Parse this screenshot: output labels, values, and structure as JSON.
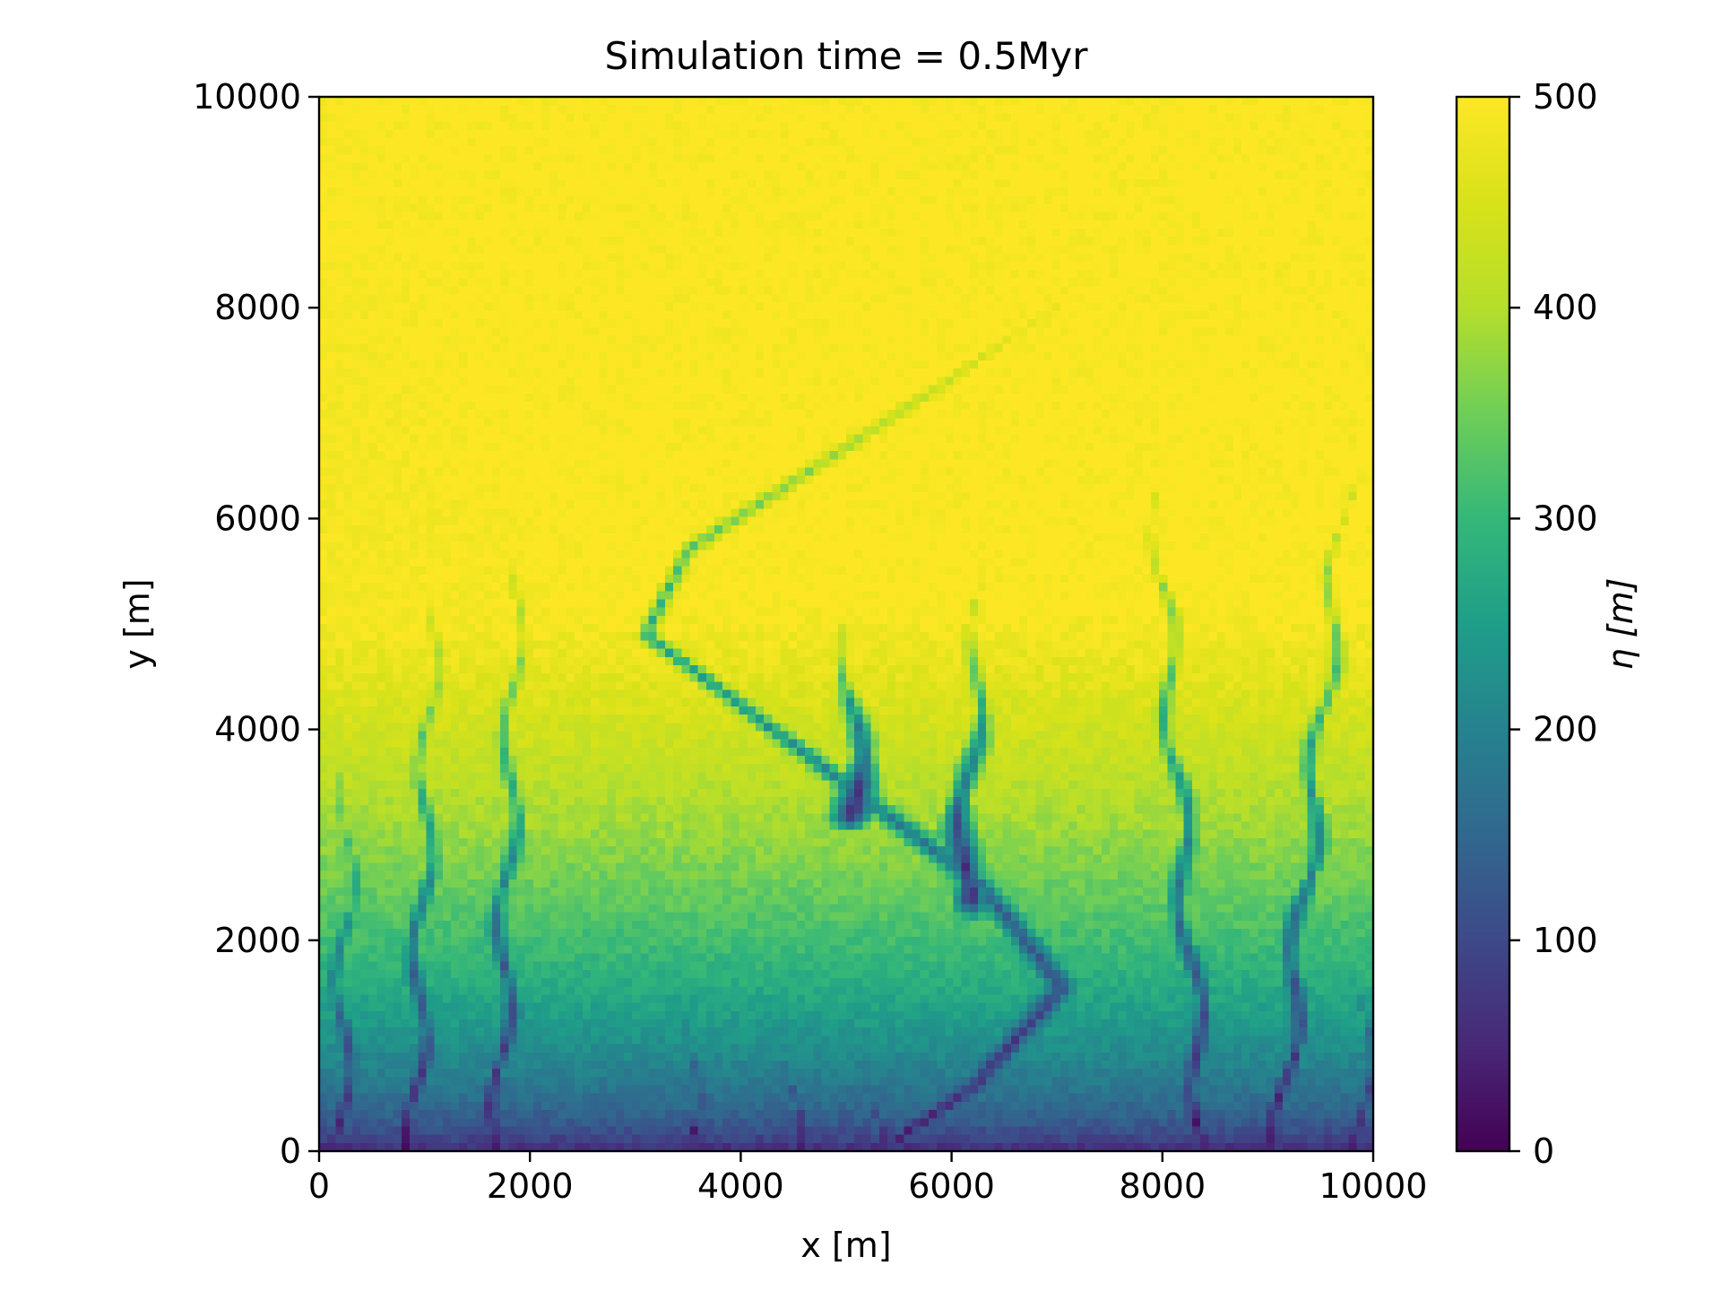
{
  "chart_data": {
    "type": "heatmap",
    "title": "Simulation time = 0.5Myr",
    "xlabel": "x [m]",
    "ylabel": "y [m]",
    "xlim": [
      0,
      10000
    ],
    "ylim": [
      0,
      10000
    ],
    "x_ticks": [
      0,
      2000,
      4000,
      6000,
      8000,
      10000
    ],
    "y_ticks": [
      0,
      2000,
      4000,
      6000,
      8000,
      10000
    ],
    "x_tick_labels": [
      "0",
      "2000",
      "4000",
      "6000",
      "8000",
      "10000"
    ],
    "y_tick_labels": [
      "0",
      "2000",
      "4000",
      "6000",
      "8000",
      "10000"
    ],
    "colormap": "viridis",
    "grid": false,
    "colorbar": {
      "label": "η [m]",
      "range": [
        0,
        500
      ],
      "ticks": [
        0,
        100,
        200,
        300,
        400,
        500
      ],
      "tick_labels": [
        "0",
        "100",
        "200",
        "300",
        "400",
        "500"
      ],
      "position": "right"
    },
    "field": {
      "description_units": "elevation η [m] over x,y [m]",
      "plateau_value": 500,
      "outlet_value": 0,
      "main_channel_path": [
        [
          5400,
          60
        ],
        [
          6200,
          600
        ],
        [
          7050,
          1550
        ],
        [
          6300,
          2500
        ],
        [
          4700,
          3700
        ],
        [
          3100,
          4900
        ],
        [
          3500,
          5700
        ],
        [
          5500,
          7000
        ],
        [
          7000,
          8000
        ]
      ],
      "tributaries": [
        {
          "base": [
            1700,
            0
          ],
          "top": [
            1900,
            6200
          ]
        },
        {
          "base": [
            900,
            0
          ],
          "top": [
            1100,
            5800
          ]
        },
        {
          "base": [
            200,
            0
          ],
          "top": [
            300,
            4600
          ]
        },
        {
          "base": [
            3500,
            0
          ],
          "top": [
            3600,
            2700
          ]
        },
        {
          "base": [
            4500,
            0
          ],
          "top": [
            4400,
            2200
          ]
        },
        {
          "base": [
            5300,
            0
          ],
          "top": [
            5200,
            1800
          ]
        },
        {
          "base": [
            8400,
            0
          ],
          "top": [
            7900,
            6800
          ]
        },
        {
          "base": [
            9100,
            0
          ],
          "top": [
            9800,
            6900
          ]
        },
        {
          "base": [
            9900,
            0
          ],
          "top": [
            9950,
            3200
          ]
        },
        {
          "base": [
            6100,
            2400
          ],
          "top": [
            6300,
            5600
          ]
        },
        {
          "base": [
            5100,
            3200
          ],
          "top": [
            5000,
            5200
          ]
        }
      ]
    }
  }
}
